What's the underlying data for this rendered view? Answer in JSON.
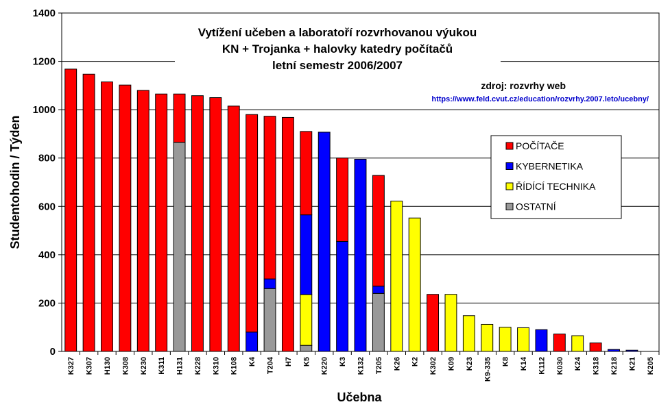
{
  "chart_data": {
    "type": "bar",
    "stacked": true,
    "title": [
      "Vytížení učeben a laboratoří rozvrhovanou výukou",
      "KN + Trojanka + halovky katedry počítačů",
      "letní semestr 2006/2007"
    ],
    "source": "zdroj: rozvrhy web",
    "source_url": "https://www.feld.cvut.cz/education/rozvrhy.2007.leto/ucebny/",
    "xlabel": "Učebna",
    "ylabel": "Studentohodin / Týden",
    "ylim": [
      0,
      1400
    ],
    "yticks": [
      0,
      200,
      400,
      600,
      800,
      1000,
      1200,
      1400
    ],
    "grid": true,
    "legend_position": "right",
    "categories": [
      "K327",
      "K307",
      "H130",
      "K308",
      "K230",
      "K311",
      "H131",
      "K228",
      "K310",
      "K108",
      "K4",
      "T204",
      "H7",
      "K5",
      "K220",
      "K3",
      "K132",
      "T205",
      "K26",
      "K2",
      "K302",
      "K09",
      "K23",
      "K9-335",
      "K8",
      "K14",
      "K112",
      "K030",
      "K24",
      "K318",
      "K218",
      "K21",
      "K205"
    ],
    "series": [
      {
        "name": "OSTATNÍ",
        "color": "#999999",
        "values": [
          0,
          0,
          0,
          0,
          0,
          0,
          865,
          0,
          0,
          0,
          0,
          260,
          0,
          25,
          0,
          0,
          0,
          240,
          0,
          0,
          0,
          0,
          0,
          0,
          0,
          0,
          0,
          0,
          0,
          0,
          0,
          0,
          0
        ]
      },
      {
        "name": "ŘÍDÍCÍ TECHNIKA",
        "color": "#ffff00",
        "values": [
          0,
          0,
          0,
          0,
          0,
          0,
          0,
          0,
          0,
          0,
          0,
          0,
          0,
          210,
          0,
          0,
          0,
          0,
          622,
          552,
          0,
          236,
          148,
          112,
          100,
          98,
          0,
          0,
          65,
          0,
          0,
          0,
          0
        ]
      },
      {
        "name": "KYBERNETIKA",
        "color": "#0000ff",
        "values": [
          0,
          0,
          0,
          0,
          0,
          0,
          0,
          0,
          0,
          0,
          80,
          40,
          0,
          330,
          907,
          455,
          795,
          30,
          0,
          0,
          0,
          0,
          0,
          0,
          0,
          0,
          90,
          0,
          0,
          0,
          8,
          5,
          0
        ]
      },
      {
        "name": "POČÍTAČE",
        "color": "#ff0000",
        "values": [
          1168,
          1147,
          1115,
          1102,
          1080,
          1065,
          200,
          1058,
          1050,
          1015,
          900,
          673,
          968,
          345,
          0,
          345,
          0,
          458,
          0,
          0,
          236,
          0,
          0,
          0,
          0,
          0,
          0,
          72,
          0,
          35,
          0,
          0,
          0
        ]
      }
    ],
    "legend_order": [
      "POČÍTAČE",
      "KYBERNETIKA",
      "ŘÍDÍCÍ TECHNIKA",
      "OSTATNÍ"
    ]
  }
}
